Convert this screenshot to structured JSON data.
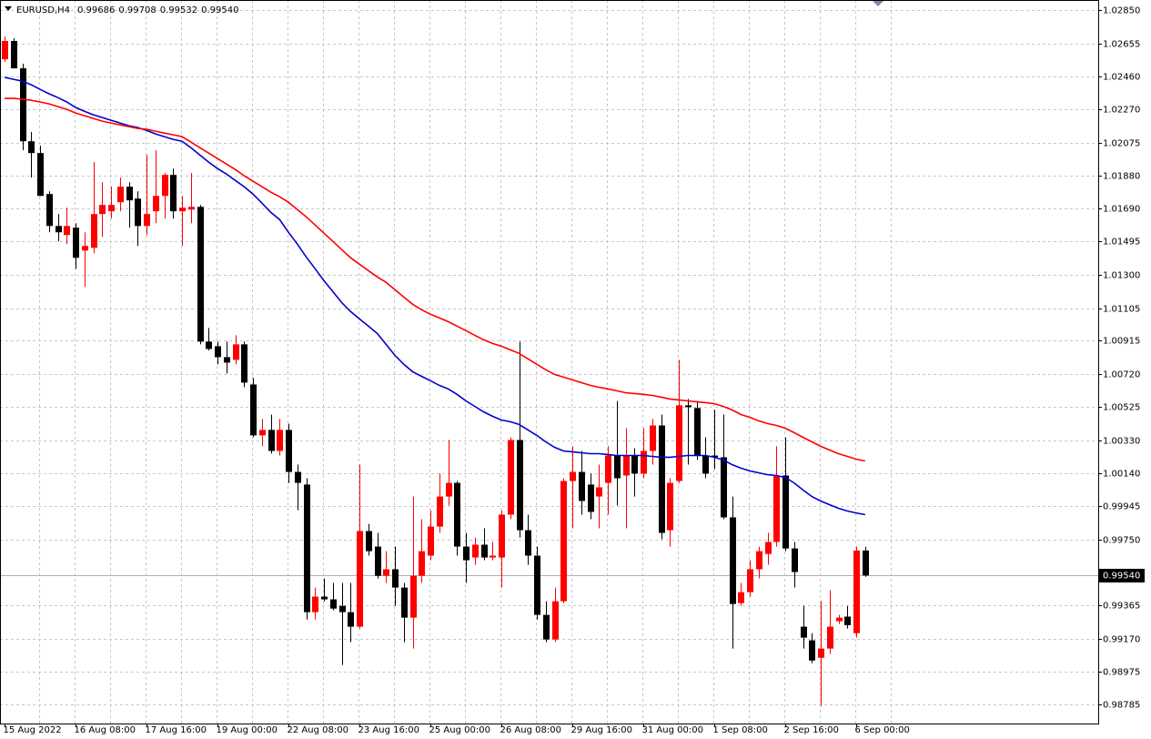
{
  "chart_data": {
    "type": "candlestick",
    "title": "EURUSD,H4",
    "ohlc_labels": [
      "0.99686",
      "0.99708",
      "0.99532",
      "0.99540"
    ],
    "categories": [
      "15 Aug 2022",
      null,
      null,
      null,
      null,
      null,
      null,
      null,
      "16 Aug 08:00",
      null,
      null,
      null,
      null,
      null,
      null,
      null,
      "17 Aug 16:00",
      null,
      null,
      null,
      null,
      null,
      null,
      null,
      "19 Aug 00:00",
      null,
      null,
      null,
      null,
      null,
      null,
      null,
      "22 Aug 08:00",
      null,
      null,
      null,
      null,
      null,
      null,
      null,
      "23 Aug 16:00",
      null,
      null,
      null,
      null,
      null,
      null,
      null,
      "25 Aug 00:00",
      null,
      null,
      null,
      null,
      null,
      null,
      null,
      "26 Aug 08:00",
      null,
      null,
      null,
      null,
      null,
      null,
      null,
      "29 Aug 16:00",
      null,
      null,
      null,
      null,
      null,
      null,
      null,
      "31 Aug 00:00",
      null,
      null,
      null,
      null,
      null,
      null,
      null,
      "1 Sep 08:00",
      null,
      null,
      null,
      null,
      null,
      null,
      null,
      "2 Sep 16:00",
      null,
      null,
      null,
      null,
      null,
      null,
      null,
      "6 Sep 00:00",
      null
    ],
    "open": [
      1.02562,
      1.02669,
      1.02509,
      1.02082,
      1.02013,
      1.01773,
      1.01586,
      1.01533,
      1.01576,
      1.01442,
      1.01458,
      1.01656,
      1.01672,
      1.01725,
      1.01816,
      1.01746,
      1.01586,
      1.01672,
      1.01762,
      1.01885,
      1.01672,
      1.01682,
      1.01698,
      1.00909,
      1.00882,
      1.00818,
      1.00802,
      1.00893,
      1.00658,
      1.0036,
      1.00392,
      1.00269,
      1.00392,
      1.00146,
      1.00072,
      0.99325,
      0.99416,
      0.994,
      0.99362,
      0.99325,
      0.9924,
      0.998,
      0.99709,
      0.99538,
      0.99576,
      0.99469,
      0.99293,
      0.99538,
      0.99656,
      0.99826,
      1.00002,
      1.00082,
      0.99709,
      0.99645,
      0.9972,
      0.99645,
      0.99645,
      0.99896,
      1.00333,
      0.99805,
      0.99656,
      0.99309,
      0.99165,
      0.99389,
      1.00093,
      1.00146,
      1.00072,
      1.00002,
      1.00082,
      1.00242,
      1.00125,
      1.00242,
      1.00136,
      1.00269,
      1.00418,
      0.99805,
      1.00093,
      1.00536,
      1.0052,
      1.00242,
      1.00242,
      1.00232,
      0.9988,
      0.99378,
      0.99442,
      0.99576,
      0.99666,
      0.99736,
      1.00125,
      0.99698,
      0.9924,
      0.9916,
      0.99058,
      0.99112,
      0.99272,
      0.99299,
      0.99202,
      0.99686
    ],
    "high": [
      1.02696,
      1.02685,
      1.02536,
      1.02136,
      1.02056,
      1.01789,
      1.01656,
      1.01693,
      1.01602,
      1.01549,
      1.0196,
      1.01842,
      1.01816,
      1.01869,
      1.01842,
      1.01789,
      1.02002,
      1.02029,
      1.01896,
      1.01922,
      1.01762,
      1.01896,
      1.01709,
      1.00989,
      1.00909,
      1.00909,
      1.00946,
      1.00909,
      1.00696,
      1.00456,
      1.00482,
      1.00456,
      1.00429,
      1.00189,
      1.00109,
      0.99469,
      0.99522,
      0.99496,
      0.99496,
      0.99496,
      1.00189,
      0.99842,
      0.99789,
      0.99682,
      0.99709,
      0.99496,
      1.00002,
      0.99869,
      0.99922,
      1.00136,
      1.00333,
      1.00093,
      0.99789,
      0.99762,
      0.99816,
      0.99736,
      0.99922,
      1.00349,
      1.00909,
      0.99896,
      0.99709,
      0.99389,
      0.99469,
      1.00109,
      1.00296,
      1.00269,
      1.00136,
      1.00189,
      1.00296,
      1.00562,
      1.00402,
      1.00285,
      1.00402,
      1.00456,
      1.00482,
      1.00109,
      1.00802,
      1.00573,
      1.00562,
      1.00349,
      1.00509,
      1.00482,
      1.00002,
      0.99496,
      0.99629,
      0.99709,
      0.99789,
      1.00296,
      1.00349,
      0.99736,
      0.99362,
      0.99202,
      0.99389,
      0.99453,
      0.99309,
      0.99362,
      0.99709,
      0.99708
    ],
    "low": [
      1.02546,
      1.02509,
      1.02029,
      1.01869,
      1.01762,
      1.01549,
      1.01496,
      1.0148,
      1.01336,
      1.01229,
      1.01426,
      1.01522,
      1.01629,
      1.01672,
      1.01576,
      1.01469,
      1.01533,
      1.01602,
      1.01629,
      1.01629,
      1.01469,
      1.01602,
      1.00893,
      1.00856,
      1.00776,
      1.00722,
      1.00776,
      1.00642,
      1.00349,
      1.00296,
      1.00253,
      1.00242,
      1.00082,
      0.99922,
      0.99282,
      0.99282,
      0.99389,
      0.99336,
      0.99016,
      0.99149,
      0.99229,
      0.99656,
      0.99522,
      0.99496,
      0.99362,
      0.99149,
      0.99112,
      0.99496,
      0.99629,
      0.99789,
      0.99949,
      0.99656,
      0.99496,
      0.99602,
      0.99629,
      0.99629,
      0.99469,
      0.99869,
      0.99762,
      0.99602,
      0.99282,
      0.99149,
      0.99149,
      0.99378,
      0.99816,
      0.99896,
      0.99869,
      0.99816,
      0.99896,
      0.99949,
      0.99816,
      1.00002,
      1.00109,
      1.00189,
      0.99752,
      0.99709,
      1.00082,
      1.00189,
      1.00216,
      1.00109,
      1.00162,
      0.99869,
      0.99112,
      0.99362,
      0.99416,
      0.99522,
      0.99602,
      0.99709,
      0.99682,
      0.99469,
      0.99112,
      0.99026,
      0.98776,
      0.9908,
      0.99256,
      0.99229,
      0.99176,
      0.99532
    ],
    "close": [
      1.02669,
      1.02509,
      1.02082,
      1.02013,
      1.01762,
      1.01586,
      1.01549,
      1.01586,
      1.014,
      1.01469,
      1.01656,
      1.01709,
      1.01709,
      1.01816,
      1.01736,
      1.01586,
      1.01656,
      1.01762,
      1.01885,
      1.01672,
      1.01693,
      1.01698,
      1.00909,
      1.00866,
      1.00818,
      1.00786,
      1.00893,
      1.00669,
      1.0036,
      1.00392,
      1.00269,
      1.00392,
      1.00146,
      1.00082,
      0.99325,
      0.99416,
      0.994,
      0.99346,
      0.99325,
      0.9924,
      0.998,
      0.99682,
      0.99538,
      0.99576,
      0.99469,
      0.99293,
      0.99538,
      0.99682,
      0.99826,
      1.00002,
      1.00082,
      0.99709,
      0.99629,
      0.9972,
      0.99645,
      0.99656,
      0.99896,
      1.00333,
      0.99805,
      0.99656,
      0.99309,
      0.99165,
      0.99389,
      1.00093,
      1.00146,
      0.99976,
      0.99912,
      1.00056,
      1.00242,
      1.00109,
      1.00242,
      1.00136,
      1.00269,
      1.00418,
      0.99789,
      1.00082,
      1.00536,
      1.00525,
      1.00242,
      1.00136,
      1.00232,
      0.9988,
      0.99373,
      0.99442,
      0.99576,
      0.99682,
      0.99736,
      1.00125,
      0.99698,
      0.9956,
      0.99176,
      0.99042,
      0.99112,
      0.9924,
      0.99293,
      0.99249,
      0.99686,
      0.9954
    ],
    "up_color": "#ff0000",
    "down_color": "#000000",
    "lines": [
      {
        "color": "#0000cc",
        "values": [
          1.02456,
          1.02445,
          1.02434,
          1.02413,
          1.02386,
          1.0236,
          1.02338,
          1.02312,
          1.0228,
          1.02258,
          1.02237,
          1.02221,
          1.02205,
          1.02189,
          1.02173,
          1.02162,
          1.02146,
          1.02125,
          1.02109,
          1.02093,
          1.02082,
          1.02045,
          1.02002,
          1.0196,
          1.01922,
          1.0189,
          1.01853,
          1.01816,
          1.01773,
          1.0172,
          1.01666,
          1.01624,
          1.01549,
          1.0148,
          1.01405,
          1.01336,
          1.01266,
          1.01202,
          1.01138,
          1.01085,
          1.01042,
          1.01,
          1.00957,
          1.00893,
          1.00829,
          1.00776,
          1.00733,
          1.00706,
          1.0068,
          1.00653,
          1.00632,
          1.006,
          1.00562,
          1.0053,
          1.00498,
          1.00472,
          1.0045,
          1.0044,
          1.00424,
          1.00392,
          1.0036,
          1.00322,
          1.0029,
          1.00269,
          1.00264,
          1.00258,
          1.00253,
          1.00253,
          1.00248,
          1.00242,
          1.00242,
          1.00242,
          1.00242,
          1.00237,
          1.00232,
          1.00232,
          1.00237,
          1.00242,
          1.00242,
          1.00242,
          1.00232,
          1.00216,
          1.00189,
          1.00168,
          1.00152,
          1.00141,
          1.0013,
          1.00125,
          1.00114,
          1.00082,
          1.0004,
          1.00002,
          0.99976,
          0.99954,
          0.99933,
          0.99917,
          0.99906,
          0.99896
        ]
      },
      {
        "color": "#ff0000",
        "values": [
          1.02333,
          1.02333,
          1.02328,
          1.02322,
          1.02312,
          1.02301,
          1.02285,
          1.02269,
          1.02248,
          1.02232,
          1.02216,
          1.022,
          1.02189,
          1.02178,
          1.02168,
          1.02157,
          1.02152,
          1.02141,
          1.0213,
          1.0212,
          1.02109,
          1.02077,
          1.02045,
          1.02013,
          1.01981,
          1.01949,
          1.01917,
          1.0188,
          1.01848,
          1.01816,
          1.01784,
          1.01757,
          1.01725,
          1.01682,
          1.0164,
          1.01592,
          1.01544,
          1.01496,
          1.01448,
          1.014,
          1.01362,
          1.01325,
          1.01288,
          1.01256,
          1.01213,
          1.0117,
          1.01128,
          1.01096,
          1.01069,
          1.01048,
          1.01026,
          1.01,
          1.00973,
          1.00946,
          1.0092,
          1.00898,
          1.00882,
          1.00861,
          1.0084,
          1.00808,
          1.00776,
          1.00744,
          1.00717,
          1.00701,
          1.00685,
          1.00669,
          1.00653,
          1.00642,
          1.00632,
          1.00621,
          1.0061,
          1.00605,
          1.006,
          1.00594,
          1.00584,
          1.00573,
          1.00568,
          1.00562,
          1.00557,
          1.00552,
          1.00546,
          1.0053,
          1.00509,
          1.00482,
          1.00466,
          1.00445,
          1.00429,
          1.00418,
          1.00402,
          1.00376,
          1.00349,
          1.00322,
          1.00296,
          1.00274,
          1.00253,
          1.00237,
          1.00221,
          1.0021
        ]
      }
    ],
    "current_price": {
      "value": 0.9954,
      "label": "0.99540"
    },
    "ylim": [
      0.98673,
      1.02909
    ],
    "yticks": [
      {
        "value": 1.0285,
        "label": "1.02850"
      },
      1.02655,
      {
        "value": 1.0246,
        "label": "1.02460"
      },
      {
        "value": 1.0227,
        "label": "1.02270"
      },
      1.02075,
      {
        "value": 1.0188,
        "label": "1.01880"
      },
      {
        "value": 1.0169,
        "label": "1.01690"
      },
      1.01495,
      {
        "value": 1.013,
        "label": "1.01300"
      },
      1.01105,
      1.00915,
      {
        "value": 1.0072,
        "label": "1.00720"
      },
      1.00525,
      {
        "value": 1.0033,
        "label": "1.00330"
      },
      {
        "value": 1.0014,
        "label": "1.00140"
      },
      0.99945,
      {
        "value": 0.9975,
        "label": "0.99750"
      },
      0.99365,
      {
        "value": 0.9917,
        "label": "0.99170"
      },
      0.98975,
      0.98785
    ],
    "grid": true
  }
}
